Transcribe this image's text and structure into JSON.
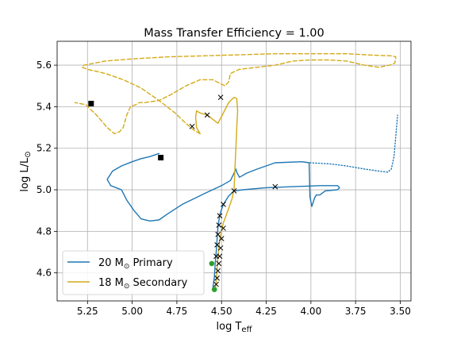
{
  "chart_data": {
    "type": "line",
    "title": "Mass Transfer Efficiency = 1.00",
    "xlabel": {
      "main": "log T",
      "sub": "eff"
    },
    "ylabel": {
      "main": "log L/L",
      "sup": "⊙"
    },
    "x_reversed": true,
    "xlim": [
      5.42,
      3.44
    ],
    "ylim": [
      4.465,
      5.715
    ],
    "x_ticks": [
      5.25,
      5.0,
      4.75,
      4.5,
      4.25,
      4.0,
      3.75,
      3.5
    ],
    "x_tick_labels": [
      "5.25",
      "5.00",
      "4.75",
      "4.50",
      "4.25",
      "4.00",
      "3.75",
      "3.50"
    ],
    "y_ticks": [
      4.6,
      4.8,
      5.0,
      5.2,
      5.4,
      5.6
    ],
    "y_tick_labels": [
      "4.6",
      "4.8",
      "5.0",
      "5.2",
      "5.4",
      "5.6"
    ],
    "grid": true,
    "legend_position": "lower-left",
    "legend": [
      {
        "mass": "20 M",
        "sun": "⊙",
        "role": "Primary",
        "color": "#1f77b4"
      },
      {
        "mass": "18 M",
        "sun": "⊙",
        "role": "Secondary",
        "color": "#d4aa18"
      }
    ],
    "series": [
      {
        "color": "#1f77b4",
        "style": "solid",
        "points": [
          [
            4.55,
            4.52
          ],
          [
            4.54,
            4.58
          ],
          [
            4.535,
            4.65
          ],
          [
            4.53,
            4.7
          ],
          [
            4.525,
            4.76
          ],
          [
            4.52,
            4.82
          ],
          [
            4.51,
            4.88
          ],
          [
            4.49,
            4.93
          ],
          [
            4.46,
            4.97
          ],
          [
            4.43,
            4.995
          ],
          [
            4.38,
            5.0
          ],
          [
            4.25,
            5.01
          ],
          [
            4.1,
            5.015
          ],
          [
            3.95,
            5.02
          ],
          [
            3.85,
            5.02
          ],
          [
            3.84,
            5.01
          ],
          [
            3.85,
            5.0
          ],
          [
            3.92,
            4.995
          ],
          [
            3.95,
            4.975
          ],
          [
            3.97,
            4.975
          ],
          [
            3.98,
            4.96
          ],
          [
            3.995,
            4.92
          ],
          [
            4.005,
            4.965
          ],
          [
            4.01,
            5.13
          ],
          [
            4.05,
            5.135
          ],
          [
            4.2,
            5.13
          ],
          [
            4.3,
            5.1
          ],
          [
            4.36,
            5.08
          ],
          [
            4.4,
            5.06
          ],
          [
            4.415,
            5.085
          ],
          [
            4.42,
            5.1
          ],
          [
            4.43,
            5.08
          ],
          [
            4.45,
            5.045
          ],
          [
            4.5,
            5.02
          ],
          [
            4.6,
            4.98
          ],
          [
            4.72,
            4.93
          ],
          [
            4.8,
            4.885
          ],
          [
            4.85,
            4.855
          ],
          [
            4.9,
            4.85
          ],
          [
            4.95,
            4.86
          ],
          [
            4.99,
            4.9
          ],
          [
            5.03,
            4.95
          ],
          [
            5.06,
            5.0
          ],
          [
            5.12,
            5.02
          ],
          [
            5.14,
            5.05
          ],
          [
            5.11,
            5.09
          ],
          [
            5.06,
            5.115
          ],
          [
            5.0,
            5.135
          ],
          [
            4.95,
            5.15
          ],
          [
            4.9,
            5.16
          ],
          [
            4.85,
            5.175
          ]
        ]
      },
      {
        "color": "#1f77b4",
        "style": "dotted",
        "points": [
          [
            4.005,
            5.13
          ],
          [
            3.9,
            5.125
          ],
          [
            3.8,
            5.115
          ],
          [
            3.7,
            5.1
          ],
          [
            3.62,
            5.09
          ],
          [
            3.57,
            5.085
          ],
          [
            3.55,
            5.1
          ],
          [
            3.535,
            5.16
          ],
          [
            3.525,
            5.26
          ],
          [
            3.515,
            5.36
          ]
        ]
      },
      {
        "color": "#d4aa18",
        "style": "solid",
        "points": [
          [
            4.535,
            4.515
          ],
          [
            4.53,
            4.56
          ],
          [
            4.525,
            4.62
          ],
          [
            4.52,
            4.68
          ],
          [
            4.51,
            4.76
          ],
          [
            4.49,
            4.84
          ],
          [
            4.46,
            4.91
          ],
          [
            4.44,
            4.96
          ],
          [
            4.43,
            5.0
          ],
          [
            4.425,
            5.1
          ],
          [
            4.42,
            5.2
          ],
          [
            4.415,
            5.3
          ],
          [
            4.41,
            5.38
          ],
          [
            4.415,
            5.44
          ],
          [
            4.43,
            5.445
          ],
          [
            4.46,
            5.42
          ],
          [
            4.49,
            5.37
          ],
          [
            4.52,
            5.32
          ],
          [
            4.55,
            5.34
          ],
          [
            4.58,
            5.36
          ],
          [
            4.62,
            5.37
          ],
          [
            4.64,
            5.38
          ],
          [
            4.645,
            5.35
          ],
          [
            4.64,
            5.3
          ],
          [
            4.62,
            5.27
          ]
        ]
      },
      {
        "color": "#d4aa18",
        "style": "dashed",
        "points": [
          [
            4.62,
            5.27
          ],
          [
            4.66,
            5.29
          ],
          [
            4.7,
            5.32
          ],
          [
            4.76,
            5.37
          ],
          [
            4.85,
            5.43
          ],
          [
            4.95,
            5.49
          ],
          [
            5.05,
            5.53
          ],
          [
            5.15,
            5.56
          ],
          [
            5.25,
            5.58
          ],
          [
            5.28,
            5.59
          ],
          [
            5.27,
            5.6
          ],
          [
            5.15,
            5.62
          ],
          [
            5.0,
            5.63
          ],
          [
            4.8,
            5.64
          ],
          [
            4.6,
            5.645
          ],
          [
            4.4,
            5.65
          ],
          [
            4.2,
            5.655
          ],
          [
            4.0,
            5.655
          ],
          [
            3.8,
            5.655
          ],
          [
            3.65,
            5.648
          ],
          [
            3.55,
            5.645
          ],
          [
            3.525,
            5.64
          ],
          [
            3.53,
            5.61
          ],
          [
            3.56,
            5.6
          ],
          [
            3.62,
            5.59
          ],
          [
            3.7,
            5.6
          ],
          [
            3.8,
            5.62
          ],
          [
            3.9,
            5.625
          ],
          [
            4.0,
            5.625
          ],
          [
            4.1,
            5.62
          ],
          [
            4.2,
            5.6
          ],
          [
            4.3,
            5.59
          ],
          [
            4.4,
            5.58
          ],
          [
            4.45,
            5.56
          ],
          [
            4.46,
            5.52
          ],
          [
            4.48,
            5.5
          ],
          [
            4.55,
            5.53
          ],
          [
            4.62,
            5.53
          ],
          [
            4.7,
            5.5
          ],
          [
            4.78,
            5.46
          ],
          [
            4.85,
            5.43
          ],
          [
            4.93,
            5.42
          ],
          [
            4.96,
            5.42
          ],
          [
            4.98,
            5.41
          ],
          [
            5.01,
            5.4
          ],
          [
            5.03,
            5.36
          ],
          [
            5.05,
            5.3
          ],
          [
            5.07,
            5.28
          ],
          [
            5.1,
            5.27
          ],
          [
            5.14,
            5.3
          ],
          [
            5.2,
            5.36
          ],
          [
            5.26,
            5.41
          ],
          [
            5.32,
            5.42
          ]
        ]
      }
    ],
    "markers": {
      "squares": {
        "color": "#000000",
        "points": [
          [
            5.23,
            5.415
          ],
          [
            4.84,
            5.155
          ]
        ]
      },
      "green_dots": {
        "color": "#2ca02c",
        "points": [
          [
            4.555,
            4.645
          ],
          [
            4.54,
            4.52
          ]
        ]
      },
      "crosses": {
        "color": "#000000",
        "points": [
          [
            4.53,
            4.68
          ],
          [
            4.525,
            4.735
          ],
          [
            4.52,
            4.785
          ],
          [
            4.515,
            4.83
          ],
          [
            4.51,
            4.875
          ],
          [
            4.49,
            4.93
          ],
          [
            4.43,
            4.995
          ],
          [
            4.2,
            5.015
          ],
          [
            4.665,
            5.305
          ],
          [
            4.58,
            5.36
          ],
          [
            4.505,
            5.445
          ],
          [
            4.49,
            4.815
          ],
          [
            4.5,
            4.765
          ],
          [
            4.505,
            4.72
          ],
          [
            4.51,
            4.68
          ],
          [
            4.515,
            4.645
          ],
          [
            4.52,
            4.61
          ],
          [
            4.525,
            4.575
          ],
          [
            4.53,
            4.545
          ]
        ]
      }
    }
  }
}
